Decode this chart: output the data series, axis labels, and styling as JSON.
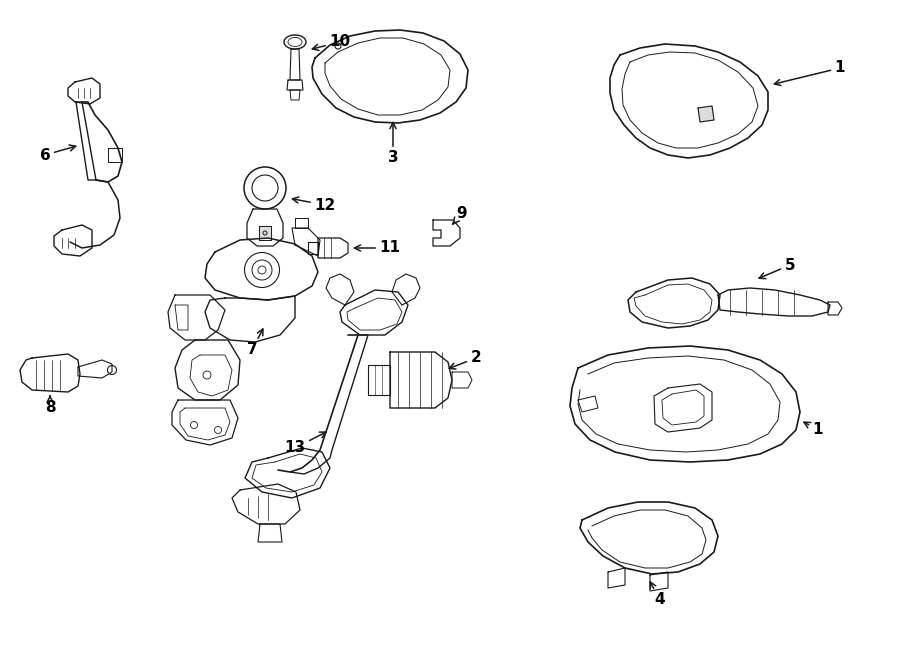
{
  "background_color": "#ffffff",
  "line_color": "#1a1a1a",
  "text_color": "#000000",
  "figsize": [
    9.0,
    6.61
  ],
  "dpi": 100
}
